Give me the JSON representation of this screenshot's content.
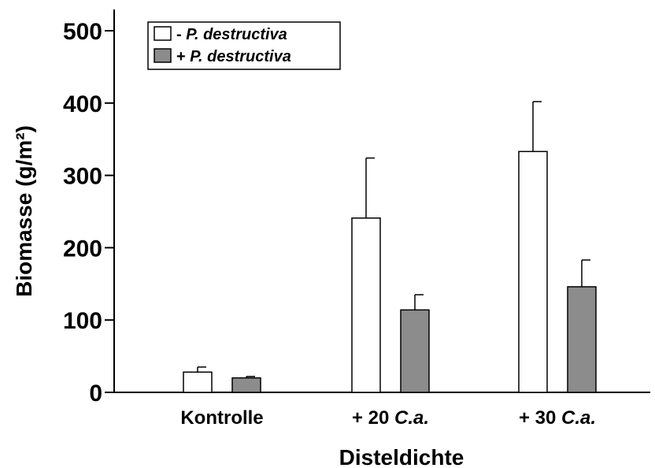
{
  "chart_data": {
    "type": "bar",
    "categories": [
      {
        "prefix": "",
        "italic": "",
        "plain": "Kontrolle"
      },
      {
        "prefix": "+ 20 ",
        "italic": "C.a.",
        "plain": ""
      },
      {
        "prefix": "+ 30 ",
        "italic": "C.a.",
        "plain": ""
      }
    ],
    "series": [
      {
        "name_prefix": "- ",
        "name_italic": "P. destructiva",
        "color": "#ffffff",
        "values": [
          28,
          241,
          333
        ],
        "errors": [
          7,
          83,
          69
        ]
      },
      {
        "name_prefix": "+ ",
        "name_italic": "P. destructiva",
        "color": "#8c8c8c",
        "values": [
          20,
          114,
          146
        ],
        "errors": [
          2,
          21,
          37
        ]
      }
    ],
    "ylim": [
      0,
      500
    ],
    "yticks": [
      "0",
      "100",
      "200",
      "300",
      "400",
      "500"
    ],
    "ylabel": "Biomasse (g/m²)",
    "xlabel": "Disteldichte",
    "legend_position": "top-left",
    "grid": false
  }
}
